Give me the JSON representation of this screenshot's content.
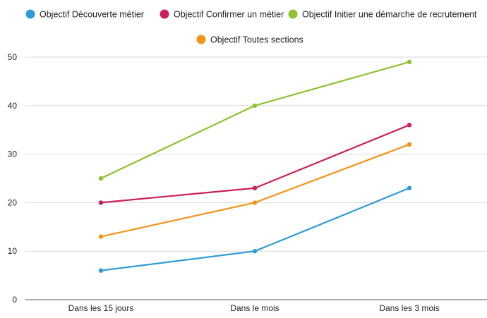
{
  "chart_data": {
    "type": "line",
    "categories": [
      "Dans les 15 jours",
      "Dans le mois",
      "Dans les 3 mois"
    ],
    "series": [
      {
        "name": "Objectif Découverte métier",
        "color": "#2e9bd6",
        "values": [
          6,
          10,
          23
        ]
      },
      {
        "name": "Objectif Confirmer un métier",
        "color": "#cc1f5c",
        "values": [
          20,
          23,
          36
        ]
      },
      {
        "name": "Objectif Initier une démarche de recrutement",
        "color": "#8ec22f",
        "values": [
          25,
          40,
          49
        ]
      },
      {
        "name": "Objectif Toutes sections",
        "color": "#f39416",
        "values": [
          13,
          20,
          32
        ]
      }
    ],
    "title": "",
    "xlabel": "",
    "ylabel": "",
    "ylim": [
      0,
      50
    ],
    "yticks": [
      0,
      10,
      20,
      30,
      40,
      50
    ],
    "grid": true,
    "legend_position": "top"
  }
}
